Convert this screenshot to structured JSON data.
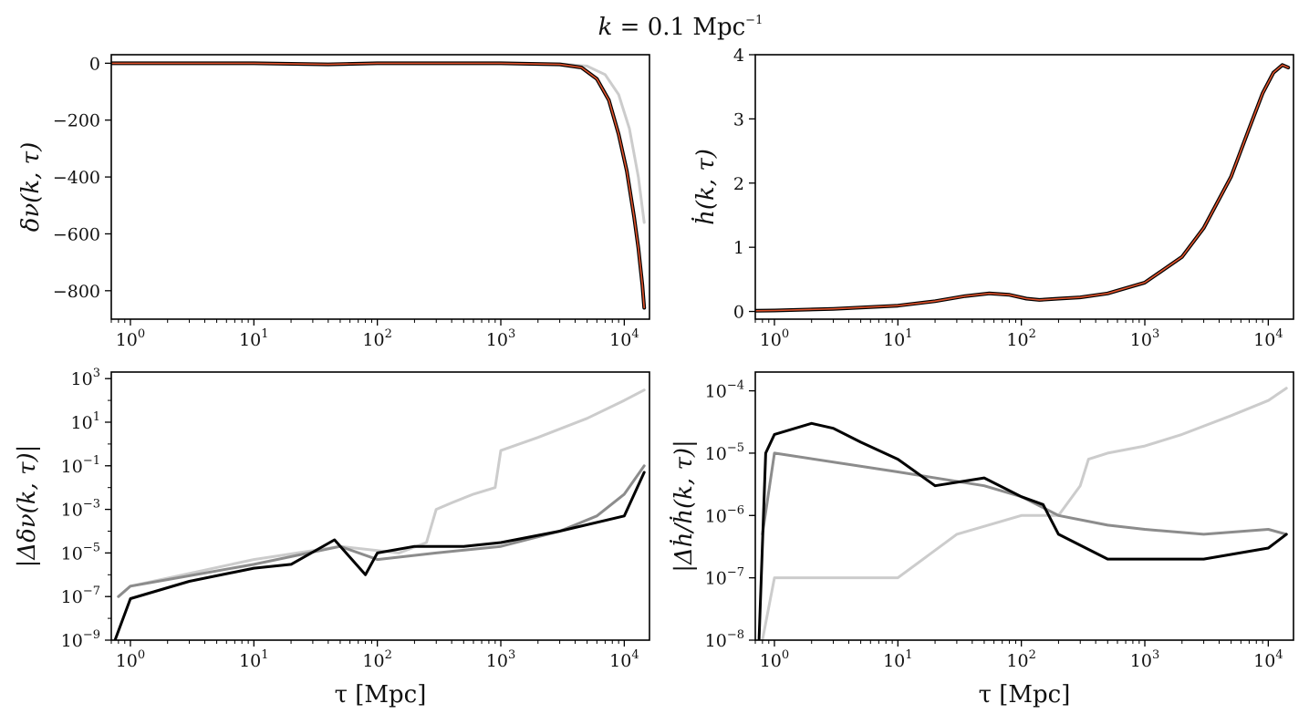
{
  "figure_title": {
    "lhs": "k",
    "eq": " = 0.1 Mpc",
    "sup": "−1"
  },
  "chart_data": [
    {
      "id": "delta_nu",
      "type": "line",
      "xscale": "log",
      "xlim": [
        0.7,
        16000
      ],
      "ylim": [
        -900,
        30
      ],
      "xticks": [
        {
          "v": 1,
          "label": "10",
          "sup": "0"
        },
        {
          "v": 10,
          "label": "10",
          "sup": "1"
        },
        {
          "v": 100,
          "label": "10",
          "sup": "2"
        },
        {
          "v": 1000,
          "label": "10",
          "sup": "3"
        },
        {
          "v": 10000,
          "label": "10",
          "sup": "4"
        }
      ],
      "yticks": [
        {
          "v": 0,
          "label": "0"
        },
        {
          "v": -200,
          "label": "−200"
        },
        {
          "v": -400,
          "label": "−400"
        },
        {
          "v": -600,
          "label": "−600"
        },
        {
          "v": -800,
          "label": "−800"
        }
      ],
      "ylabel": "δν(k, τ)",
      "xlabel": "",
      "series": [
        {
          "style": "ref",
          "x": [
            0.7,
            1,
            10,
            40,
            100,
            1000,
            3000,
            5000,
            7000,
            9000,
            11000,
            13000,
            14500
          ],
          "y": [
            0,
            0,
            0,
            -4,
            0,
            0,
            -2,
            -10,
            -40,
            -110,
            -230,
            -400,
            -560
          ]
        },
        {
          "style": "main",
          "x": [
            0.7,
            1,
            10,
            40,
            100,
            1000,
            3000,
            4500,
            6000,
            7500,
            9000,
            10500,
            12000,
            13000,
            14000,
            14500
          ],
          "y": [
            0,
            0,
            0,
            -4,
            0,
            0,
            -4,
            -15,
            -55,
            -130,
            -250,
            -380,
            -540,
            -650,
            -780,
            -860
          ]
        }
      ]
    },
    {
      "id": "hdot",
      "type": "line",
      "xscale": "log",
      "xlim": [
        0.7,
        16000
      ],
      "ylim": [
        -0.12,
        4.0
      ],
      "xticks": [
        {
          "v": 1,
          "label": "10",
          "sup": "0"
        },
        {
          "v": 10,
          "label": "10",
          "sup": "1"
        },
        {
          "v": 100,
          "label": "10",
          "sup": "2"
        },
        {
          "v": 1000,
          "label": "10",
          "sup": "3"
        },
        {
          "v": 10000,
          "label": "10",
          "sup": "4"
        }
      ],
      "yticks": [
        {
          "v": 0,
          "label": "0"
        },
        {
          "v": 1,
          "label": "1"
        },
        {
          "v": 2,
          "label": "2"
        },
        {
          "v": 3,
          "label": "3"
        },
        {
          "v": 4,
          "label": "4"
        }
      ],
      "ylabel": "ḣ(k, τ)",
      "xlabel": "",
      "series": [
        {
          "style": "main",
          "x": [
            0.7,
            1,
            3,
            10,
            20,
            35,
            55,
            80,
            110,
            140,
            200,
            300,
            500,
            1000,
            2000,
            3000,
            5000,
            7000,
            9000,
            11000,
            13000,
            14500
          ],
          "y": [
            0.01,
            0.015,
            0.04,
            0.09,
            0.16,
            0.24,
            0.28,
            0.26,
            0.2,
            0.18,
            0.2,
            0.22,
            0.28,
            0.45,
            0.85,
            1.3,
            2.1,
            2.85,
            3.4,
            3.72,
            3.84,
            3.8
          ]
        }
      ]
    },
    {
      "id": "abs_delta_nu",
      "type": "line",
      "xscale": "log",
      "yscale": "log",
      "xlim": [
        0.7,
        16000
      ],
      "ylim": [
        1e-09,
        2000
      ],
      "xticks": [
        {
          "v": 1,
          "label": "10",
          "sup": "0"
        },
        {
          "v": 10,
          "label": "10",
          "sup": "1"
        },
        {
          "v": 100,
          "label": "10",
          "sup": "2"
        },
        {
          "v": 1000,
          "label": "10",
          "sup": "3"
        },
        {
          "v": 10000,
          "label": "10",
          "sup": "4"
        }
      ],
      "yticks": [
        {
          "v": 1e-09,
          "label": "10",
          "sup": "−9"
        },
        {
          "v": 1e-07,
          "label": "10",
          "sup": "−7"
        },
        {
          "v": 1e-05,
          "label": "10",
          "sup": "−5"
        },
        {
          "v": 0.001,
          "label": "10",
          "sup": "−3"
        },
        {
          "v": 0.1,
          "label": "10",
          "sup": "−1"
        },
        {
          "v": 10,
          "label": "10",
          "sup": "1"
        },
        {
          "v": 1000,
          "label": "10",
          "sup": "3"
        }
      ],
      "ylabel": "|Δδν(k, τ)|",
      "xlabel": "τ [Mpc]",
      "series": [
        {
          "style": "light",
          "x": [
            0.8,
            1,
            10,
            50,
            150,
            250,
            300,
            400,
            600,
            900,
            1000,
            2000,
            5000,
            10000,
            14500
          ],
          "y": [
            1e-07,
            3e-07,
            5e-06,
            2e-05,
            1e-05,
            3e-05,
            0.001,
            0.002,
            0.005,
            0.01,
            0.5,
            2,
            15,
            100,
            300
          ]
        },
        {
          "style": "mid",
          "x": [
            0.8,
            1,
            10,
            50,
            100,
            300,
            1000,
            3000,
            6000,
            10000,
            14500
          ],
          "y": [
            1e-07,
            3e-07,
            3e-06,
            2e-05,
            5e-06,
            1e-05,
            2e-05,
            0.0001,
            0.0005,
            0.005,
            0.1
          ]
        },
        {
          "style": "black",
          "x": [
            0.75,
            1,
            3,
            10,
            20,
            45,
            80,
            100,
            200,
            500,
            1000,
            3000,
            10000,
            14500
          ],
          "y": [
            1e-09,
            8e-08,
            5e-07,
            2e-06,
            3e-06,
            4e-05,
            1e-06,
            1e-05,
            2e-05,
            2e-05,
            3e-05,
            0.0001,
            0.0005,
            0.05
          ]
        }
      ]
    },
    {
      "id": "rel_hdot",
      "type": "line",
      "xscale": "log",
      "yscale": "log",
      "xlim": [
        0.7,
        16000
      ],
      "ylim": [
        1e-08,
        0.0002
      ],
      "xticks": [
        {
          "v": 1,
          "label": "10",
          "sup": "0"
        },
        {
          "v": 10,
          "label": "10",
          "sup": "1"
        },
        {
          "v": 100,
          "label": "10",
          "sup": "2"
        },
        {
          "v": 1000,
          "label": "10",
          "sup": "3"
        },
        {
          "v": 10000,
          "label": "10",
          "sup": "4"
        }
      ],
      "yticks": [
        {
          "v": 1e-08,
          "label": "10",
          "sup": "−8"
        },
        {
          "v": 1e-07,
          "label": "10",
          "sup": "−7"
        },
        {
          "v": 1e-06,
          "label": "10",
          "sup": "−6"
        },
        {
          "v": 1e-05,
          "label": "10",
          "sup": "−5"
        },
        {
          "v": 0.0001,
          "label": "10",
          "sup": "−4"
        }
      ],
      "ylabel": "|Δḣ/ḣ(k, τ)|",
      "xlabel": "τ [Mpc]",
      "series": [
        {
          "style": "light",
          "x": [
            0.8,
            1,
            3,
            10,
            30,
            100,
            200,
            300,
            350,
            500,
            1000,
            2000,
            5000,
            10000,
            14000
          ],
          "y": [
            1e-08,
            1e-07,
            1e-07,
            1e-07,
            5e-07,
            1e-06,
            1e-06,
            3e-06,
            8e-06,
            1e-05,
            1.3e-05,
            2e-05,
            4e-05,
            7e-05,
            0.00011
          ]
        },
        {
          "style": "mid",
          "x": [
            0.8,
            1,
            10,
            50,
            100,
            200,
            500,
            1000,
            3000,
            10000,
            14000
          ],
          "y": [
            5e-07,
            1e-05,
            5e-06,
            3e-06,
            2e-06,
            1e-06,
            7e-07,
            6e-07,
            5e-07,
            6e-07,
            5e-07
          ]
        },
        {
          "style": "black",
          "x": [
            0.75,
            0.85,
            1,
            2,
            3,
            5,
            10,
            20,
            50,
            100,
            150,
            200,
            500,
            1000,
            3000,
            10000,
            14000
          ],
          "y": [
            1e-08,
            1e-05,
            2e-05,
            3e-05,
            2.5e-05,
            1.5e-05,
            8e-06,
            3e-06,
            4e-06,
            2e-06,
            1.5e-06,
            5e-07,
            2e-07,
            2e-07,
            2e-07,
            3e-07,
            5e-07
          ]
        }
      ]
    }
  ]
}
